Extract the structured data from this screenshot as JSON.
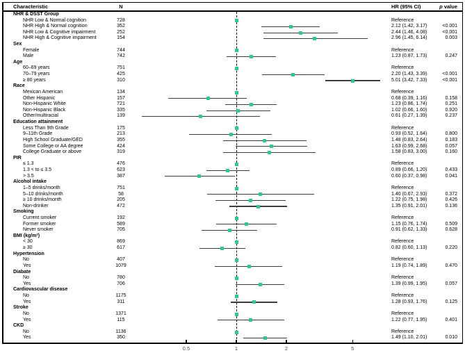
{
  "header": {
    "characteristic": "Characteristic",
    "n": "N",
    "hr": "HR (95% CI)",
    "p_prefix": "p",
    "p_suffix": " value"
  },
  "colors": {
    "marker": "#2dc98e",
    "ci_line": "#3d3d3d",
    "tick_label": "#4a4a4a",
    "frame": "#000000"
  },
  "chart_data": {
    "type": "forest",
    "x_scale": "log",
    "x_ticks": [
      0.5,
      1,
      2,
      5
    ],
    "reference_line": 1,
    "columns": [
      "Characteristic",
      "N",
      "HR (95% CI)",
      "p value"
    ],
    "sections": [
      {
        "label": "NHR & DSST Group",
        "rows": [
          {
            "label": "NHR Low & Normal cognition",
            "n": "728",
            "ref": true,
            "ci": "Reference",
            "p": ""
          },
          {
            "label": "NHR High & Normal cognition",
            "n": "352",
            "hr": 2.12,
            "lo": 1.42,
            "hi": 3.17,
            "ci": "2.12 (1.42, 3.17)",
            "p": "<0.001"
          },
          {
            "label": "NHR Low & Cognitive impairment",
            "n": "252",
            "hr": 2.44,
            "lo": 1.46,
            "hi": 4.08,
            "ci": "2.44 (1.46, 4.08)",
            "p": "<0.001"
          },
          {
            "label": "NHR High & Cognitive impairment",
            "n": "154",
            "hr": 2.96,
            "lo": 1.45,
            "hi": 6.14,
            "ci": "2.96 (1.45, 6.14)",
            "p": "0.003"
          }
        ]
      },
      {
        "label": "Sex",
        "rows": [
          {
            "label": "Female",
            "n": "744",
            "ref": true,
            "ci": "Reference",
            "p": ""
          },
          {
            "label": "Male",
            "n": "742",
            "hr": 1.23,
            "lo": 0.87,
            "hi": 1.73,
            "ci": "1.23 (0.87, 1.73)",
            "p": "0.247"
          }
        ]
      },
      {
        "label": "Age",
        "rows": [
          {
            "label": "60–69 years",
            "n": "751",
            "ref": true,
            "ci": "Reference",
            "p": ""
          },
          {
            "label": "70–79 years",
            "n": "425",
            "hr": 2.2,
            "lo": 1.43,
            "hi": 3.39,
            "ci": "2.20 (1.43, 3.39)",
            "p": "<0.001"
          },
          {
            "label": "≥ 80 years",
            "n": "310",
            "hr": 5.01,
            "lo": 3.42,
            "hi": 7.33,
            "ci": "5.01 (3.42, 7.33)",
            "p": "<0.001"
          }
        ]
      },
      {
        "label": "Race",
        "rows": [
          {
            "label": "Mexican American",
            "n": "134",
            "ref": true,
            "ci": "Reference",
            "p": ""
          },
          {
            "label": "Other Hispanic",
            "n": "157",
            "hr": 0.68,
            "lo": 0.39,
            "hi": 1.16,
            "ci": "0.68 (0.39, 1.16)",
            "p": "0.158"
          },
          {
            "label": "Non-Hispanic White",
            "n": "721",
            "hr": 1.23,
            "lo": 0.86,
            "hi": 1.74,
            "ci": "1.23 (0.86, 1.74)",
            "p": "0.251"
          },
          {
            "label": "Non-Hispanic Black",
            "n": "335",
            "hr": 1.02,
            "lo": 0.66,
            "hi": 1.6,
            "ci": "1.02 (0.66, 1.60)",
            "p": "0.920"
          },
          {
            "label": "Other/multiracial",
            "n": "139",
            "hr": 0.61,
            "lo": 0.27,
            "hi": 1.39,
            "ci": "0.61 (0.27, 1.39)",
            "p": "0.237"
          }
        ]
      },
      {
        "label": "Education attainment",
        "rows": [
          {
            "label": "Less Than 9th Grade",
            "n": "175",
            "ref": true,
            "ci": "Reference",
            "p": ""
          },
          {
            "label": "9–11th Grade",
            "n": "213",
            "hr": 0.93,
            "lo": 0.52,
            "hi": 1.64,
            "ci": "0.93 (0.52, 1.64)",
            "p": "0.800"
          },
          {
            "label": "High School Graduate/GED",
            "n": "355",
            "hr": 1.48,
            "lo": 0.83,
            "hi": 2.64,
            "ci": "1.48 (0.83, 2.64)",
            "p": "0.183"
          },
          {
            "label": "Some College or AA degree",
            "n": "424",
            "hr": 1.63,
            "lo": 0.99,
            "hi": 2.68,
            "ci": "1.63 (0.99, 2.68)",
            "p": "0.057"
          },
          {
            "label": "College Graduate or above",
            "n": "319",
            "hr": 1.58,
            "lo": 0.83,
            "hi": 3.0,
            "ci": "1.58 (0.83, 3.00)",
            "p": "0.160"
          }
        ]
      },
      {
        "label": "PIR",
        "rows": [
          {
            "label": "≤ 1.3",
            "n": "476",
            "ref": true,
            "ci": "Reference",
            "p": ""
          },
          {
            "label": "1.3 < to ≤ 3.5",
            "n": "623",
            "hr": 0.89,
            "lo": 0.66,
            "hi": 1.2,
            "ci": "0.89 (0.66, 1.20)",
            "p": "0.433"
          },
          {
            "label": "> 3.5",
            "n": "387",
            "hr": 0.6,
            "lo": 0.37,
            "hi": 0.98,
            "ci": "0.60 (0.37, 0.98)",
            "p": "0.041"
          }
        ]
      },
      {
        "label": "Alcohol intake",
        "rows": [
          {
            "label": "1–5 drinks/month",
            "n": "751",
            "ref": true,
            "ci": "Reference",
            "p": ""
          },
          {
            "label": "5–10 drinks/month",
            "n": "58",
            "hr": 1.4,
            "lo": 0.67,
            "hi": 2.93,
            "ci": "1.40 (0.67, 2.93)",
            "p": "0.372"
          },
          {
            "label": "≥ 10 drinks/month",
            "n": "205",
            "hr": 1.22,
            "lo": 0.75,
            "hi": 1.98,
            "ci": "1.22 (0.75, 1.98)",
            "p": "0.426"
          },
          {
            "label": "Non-drinker",
            "n": "472",
            "hr": 1.35,
            "lo": 0.91,
            "hi": 2.01,
            "ci": "1.35 (0.91, 2.01)",
            "p": "0.136"
          }
        ]
      },
      {
        "label": "Smoking",
        "rows": [
          {
            "label": "Current smoker",
            "n": "192",
            "ref": true,
            "ci": "Reference",
            "p": ""
          },
          {
            "label": "Former smoker",
            "n": "589",
            "hr": 1.15,
            "lo": 0.76,
            "hi": 1.74,
            "ci": "1.15 (0.76, 1.74)",
            "p": "0.509"
          },
          {
            "label": "Never smoker",
            "n": "705",
            "hr": 0.91,
            "lo": 0.62,
            "hi": 1.33,
            "ci": "0.91 (0.62, 1.33)",
            "p": "0.628"
          }
        ]
      },
      {
        "label": "BMI (kg/m²)",
        "rows": [
          {
            "label": "< 30",
            "n": "869",
            "ref": true,
            "ci": "Reference",
            "p": ""
          },
          {
            "label": "≥ 30",
            "n": "617",
            "hr": 0.82,
            "lo": 0.6,
            "hi": 1.13,
            "ci": "0.82 (0.60, 1.13)",
            "p": "0.220"
          }
        ]
      },
      {
        "label": "Hypertension",
        "rows": [
          {
            "label": "No",
            "n": "407",
            "ref": true,
            "ci": "Reference",
            "p": ""
          },
          {
            "label": "Yes",
            "n": "1079",
            "hr": 1.19,
            "lo": 0.74,
            "hi": 1.89,
            "ci": "1.19 (0.74, 1.89)",
            "p": "0.470"
          }
        ]
      },
      {
        "label": "Diabate",
        "rows": [
          {
            "label": "No",
            "n": "780",
            "ref": true,
            "ci": "Reference",
            "p": ""
          },
          {
            "label": "Yes",
            "n": "706",
            "hr": 1.39,
            "lo": 0.99,
            "hi": 1.95,
            "ci": "1.39 (0.99, 1.95)",
            "p": "0.057"
          }
        ]
      },
      {
        "label": "Cardiovascular disease",
        "rows": [
          {
            "label": "No",
            "n": "1175",
            "ref": true,
            "ci": "Reference",
            "p": ""
          },
          {
            "label": "Yes",
            "n": "311",
            "hr": 1.28,
            "lo": 0.93,
            "hi": 1.76,
            "ci": "1.28 (0.93, 1.76)",
            "p": "0.125"
          }
        ]
      },
      {
        "label": "Stroke",
        "rows": [
          {
            "label": "No",
            "n": "1371",
            "ref": true,
            "ci": "Reference",
            "p": ""
          },
          {
            "label": "Yes",
            "n": "115",
            "hr": 1.22,
            "lo": 0.77,
            "hi": 1.95,
            "ci": "1.22 (0.77, 1.95)",
            "p": "0.401"
          }
        ]
      },
      {
        "label": "CKD",
        "rows": [
          {
            "label": "No",
            "n": "1136",
            "ref": true,
            "ci": "Reference",
            "p": ""
          },
          {
            "label": "Yes",
            "n": "350",
            "hr": 1.49,
            "lo": 1.1,
            "hi": 2.01,
            "ci": "1.49 (1.10, 2.01)",
            "p": "0.010"
          }
        ]
      }
    ]
  }
}
